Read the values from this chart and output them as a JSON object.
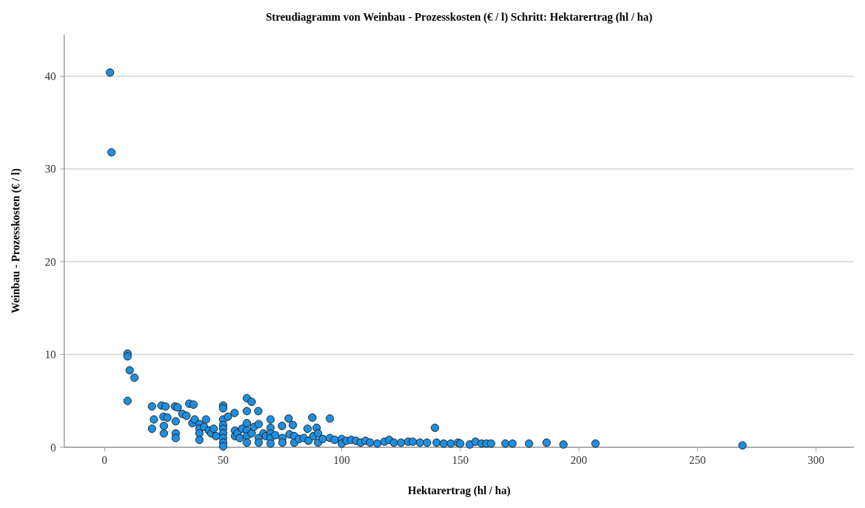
{
  "chart_data": {
    "type": "scatter",
    "title": "Streudiagramm von Weinbau - Prozesskosten (€ / l) Schritt: Hektarertrag (hl / ha)",
    "xlabel": "Hektarertrag (hl / ha)",
    "ylabel": "Weinbau - Prozesskosten (€ / l)",
    "xlim": [
      -17,
      316
    ],
    "ylim": [
      0,
      44.5
    ],
    "xticks": [
      0,
      50,
      100,
      150,
      200,
      250,
      300
    ],
    "yticks": [
      0,
      10,
      20,
      30,
      40
    ],
    "grid": "y",
    "marker": "circle",
    "series": [
      {
        "color": "#1e8fe0",
        "x": [
          2.3,
          2.9,
          9.7,
          9.7,
          10.6,
          12.6,
          9.7,
          20,
          20,
          20.8,
          24,
          25.7,
          24.8,
          25,
          25,
          26.5,
          29.7,
          30,
          30,
          30,
          30.8,
          32.8,
          34.5,
          35.7,
          37.5,
          37,
          38,
          40,
          40,
          40,
          40,
          42,
          42.8,
          44,
          45,
          46,
          47,
          50,
          50,
          50,
          50,
          50,
          50,
          50,
          50,
          50,
          52,
          54.8,
          55,
          55,
          56,
          57,
          58,
          60,
          60,
          60,
          60,
          60,
          60,
          62,
          62,
          63,
          64.8,
          65,
          65,
          65,
          67,
          68,
          70,
          70,
          70,
          70,
          70,
          72,
          74.8,
          75,
          75,
          77.6,
          78,
          79.4,
          80,
          80,
          82,
          84,
          85.6,
          86,
          87.6,
          88,
          89.4,
          90,
          90,
          92,
          95,
          95,
          97,
          100,
          100,
          102,
          104,
          106,
          108,
          110,
          112,
          115,
          118,
          120,
          122,
          125,
          128,
          130,
          133,
          136,
          139.3,
          140,
          143,
          146,
          149,
          150,
          154,
          156.4,
          159,
          161,
          163,
          169,
          172,
          179,
          186.4,
          193.5,
          207,
          269
        ],
        "values": [
          40.4,
          31.8,
          10.1,
          9.8,
          8.3,
          7.5,
          5.0,
          4.4,
          2.0,
          3.0,
          4.5,
          4.4,
          3.3,
          2.3,
          1.5,
          3.2,
          4.4,
          2.8,
          1.5,
          1.0,
          4.3,
          3.6,
          3.4,
          4.7,
          4.6,
          2.6,
          3.0,
          2.5,
          2.0,
          1.5,
          0.8,
          2.2,
          3.0,
          1.8,
          1.5,
          2.0,
          1.2,
          4.5,
          4.2,
          3.0,
          2.4,
          2.0,
          1.5,
          1.0,
          0.5,
          0.1,
          3.3,
          3.7,
          1.8,
          1.2,
          1.5,
          1.0,
          2.0,
          5.3,
          3.9,
          2.6,
          1.8,
          1.2,
          0.5,
          4.9,
          1.5,
          2.2,
          3.9,
          2.5,
          1.0,
          0.5,
          1.5,
          1.2,
          3.0,
          2.1,
          1.5,
          1.0,
          0.4,
          1.3,
          2.3,
          1.0,
          0.5,
          3.1,
          1.4,
          2.4,
          1.2,
          0.5,
          0.9,
          1.0,
          2.0,
          0.7,
          3.2,
          1.2,
          2.1,
          1.5,
          0.5,
          0.9,
          3.1,
          1.0,
          0.8,
          0.9,
          0.4,
          0.7,
          0.8,
          0.7,
          0.5,
          0.7,
          0.5,
          0.4,
          0.6,
          0.8,
          0.5,
          0.5,
          0.6,
          0.6,
          0.5,
          0.5,
          2.1,
          0.5,
          0.4,
          0.4,
          0.5,
          0.4,
          0.3,
          0.6,
          0.4,
          0.4,
          0.4,
          0.4,
          0.4,
          0.4,
          0.5,
          0.3,
          0.4,
          0.2
        ]
      }
    ]
  }
}
